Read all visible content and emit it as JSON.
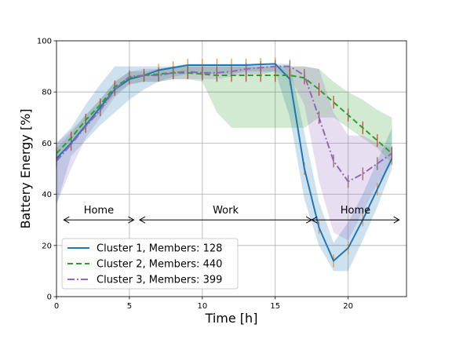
{
  "chart_data": {
    "type": "line",
    "title": "",
    "xlabel": "Time [h]",
    "ylabel": "Battery Energy [%]",
    "xlim": [
      0,
      24
    ],
    "ylim": [
      0,
      100
    ],
    "xticks": [
      0,
      5,
      10,
      15,
      20
    ],
    "xtick_labels": [
      "0",
      "5",
      "10",
      "15",
      "20"
    ],
    "yticks": [
      0,
      20,
      40,
      60,
      80,
      100
    ],
    "ytick_labels": [
      "0",
      "20",
      "40",
      "60",
      "80",
      "100"
    ],
    "grid": true,
    "legend_position": "bottom-left",
    "x": [
      0,
      1,
      2,
      3,
      4,
      5,
      6,
      7,
      8,
      9,
      10,
      11,
      12,
      13,
      14,
      15,
      16,
      17,
      18,
      19,
      20,
      21,
      22,
      23
    ],
    "series": [
      {
        "name": "Cluster 1, Members: 128",
        "color": "#1f77b4",
        "dash": "solid",
        "values": [
          54,
          60,
          67,
          74,
          81,
          85,
          86.5,
          88.5,
          89.5,
          90.5,
          90.5,
          90.5,
          90.5,
          90.5,
          90.8,
          91,
          85,
          50,
          27,
          14,
          19,
          30,
          42,
          54
        ],
        "band_low": [
          36,
          55,
          61,
          67,
          72,
          77,
          81,
          84,
          86,
          87,
          87,
          87,
          87,
          88,
          88,
          88,
          70,
          38,
          20,
          10,
          10,
          22,
          35,
          50
        ],
        "band_high": [
          60,
          66,
          75,
          83,
          90,
          90,
          90,
          90,
          90,
          91,
          91,
          91,
          91,
          91,
          91,
          91,
          91,
          64,
          37,
          21,
          29,
          40,
          53,
          66
        ]
      },
      {
        "name": "Cluster 2, Members: 440",
        "color": "#2ca02c",
        "dash": "dashed",
        "values": [
          56,
          62,
          69,
          75,
          82,
          85.5,
          86.5,
          87,
          87.5,
          87.5,
          87,
          86.5,
          86.5,
          86.5,
          86.5,
          86.5,
          86.5,
          85.5,
          81,
          76,
          71,
          66,
          61,
          56
        ],
        "band_low": [
          54,
          60,
          66,
          72,
          79,
          83,
          84,
          84,
          85,
          85,
          84,
          72,
          66,
          66,
          66,
          66,
          66,
          66,
          70,
          70,
          66,
          62,
          58,
          52
        ],
        "band_high": [
          58,
          64,
          71,
          77,
          84,
          88,
          88,
          89,
          90,
          90,
          90,
          90,
          90,
          90,
          90,
          90,
          90,
          90,
          89,
          84,
          80,
          77,
          73,
          70
        ]
      },
      {
        "name": "Cluster 3, Members: 399",
        "color": "#9467bd",
        "dash": "dashdot",
        "values": [
          53,
          59.5,
          66.5,
          73,
          81,
          86,
          86.5,
          86.5,
          87.5,
          88,
          87.5,
          87.5,
          88,
          89,
          89.5,
          90,
          90,
          86.5,
          70,
          53,
          45,
          48,
          52,
          56
        ],
        "band_low": [
          36,
          50,
          62,
          70,
          78,
          83,
          84,
          84,
          85,
          85,
          85,
          85,
          86,
          87,
          87,
          88,
          86,
          75,
          45,
          25,
          22,
          33,
          44,
          52
        ],
        "band_high": [
          60,
          65,
          71,
          77,
          84,
          88,
          89,
          89,
          90,
          90,
          90,
          90,
          90,
          90,
          90,
          90,
          90,
          90,
          89,
          72,
          63,
          63,
          60,
          58
        ]
      }
    ],
    "annotations": [
      {
        "text": "Home",
        "x_start": 0.5,
        "x_end": 5.3,
        "y": 30
      },
      {
        "text": "Work",
        "x_start": 5.7,
        "x_end": 17.5,
        "y": 30
      },
      {
        "text": "Home",
        "x_start": 17.5,
        "x_end": 23.5,
        "y": 30
      }
    ]
  }
}
